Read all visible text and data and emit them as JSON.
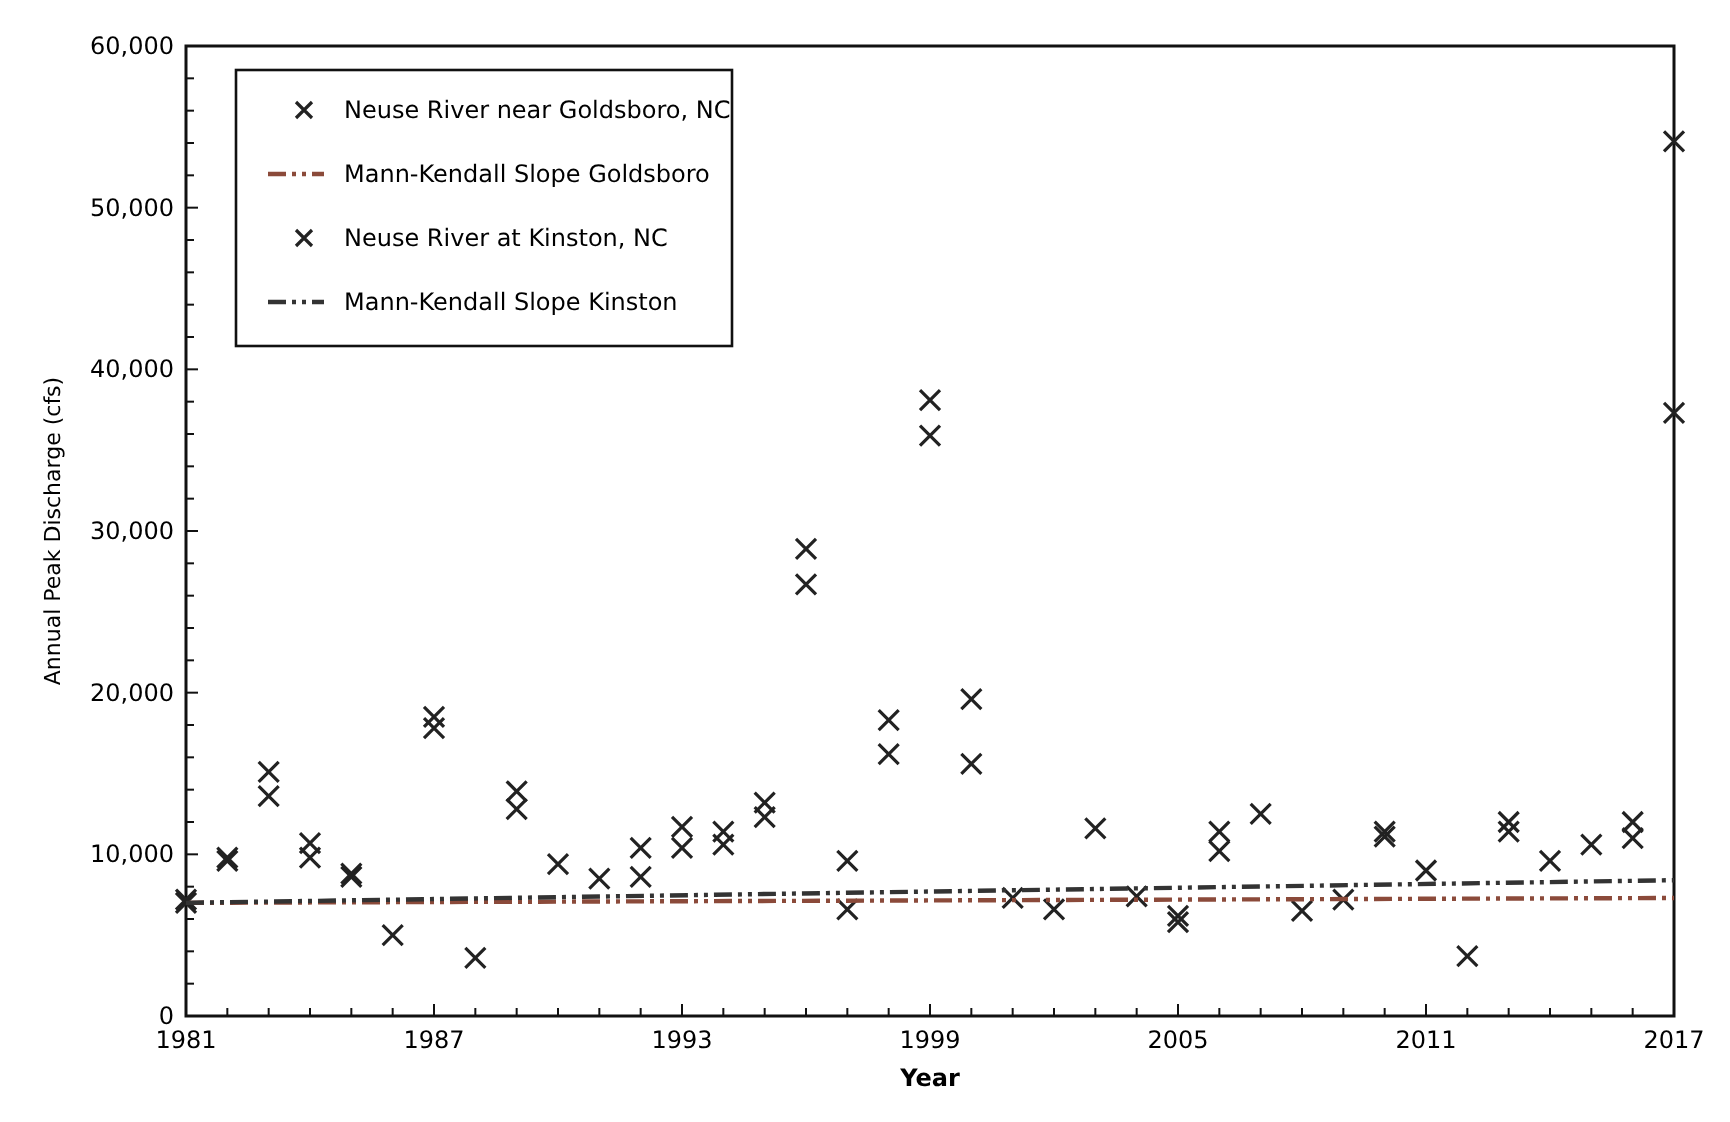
{
  "chart_data": {
    "type": "scatter",
    "xlabel": "Year",
    "ylabel": "Annual Peak Discharge (cfs)",
    "xlim": [
      1981,
      2017
    ],
    "ylim": [
      0,
      60000
    ],
    "xticks": [
      1981,
      {
        "value": 1982,
        "label": null
      },
      {
        "value": 1983,
        "label": null
      },
      {
        "value": 1984,
        "label": null
      },
      {
        "value": 1985,
        "label": null
      },
      {
        "value": 1986,
        "label": null
      },
      1987,
      {
        "value": 1988,
        "label": null
      },
      {
        "value": 1989,
        "label": null
      },
      {
        "value": 1990,
        "label": null
      },
      {
        "value": 1991,
        "label": null
      },
      {
        "value": 1992,
        "label": null
      },
      1993,
      {
        "value": 1994,
        "label": null
      },
      {
        "value": 1995,
        "label": null
      },
      {
        "value": 1996,
        "label": null
      },
      {
        "value": 1997,
        "label": null
      },
      {
        "value": 1998,
        "label": null
      },
      1999,
      {
        "value": 2000,
        "label": null
      },
      {
        "value": 2001,
        "label": null
      },
      {
        "value": 2002,
        "label": null
      },
      {
        "value": 2003,
        "label": null
      },
      {
        "value": 2004,
        "label": null
      },
      2005,
      {
        "value": 2006,
        "label": null
      },
      {
        "value": 2007,
        "label": null
      },
      {
        "value": 2008,
        "label": null
      },
      {
        "value": 2009,
        "label": null
      },
      {
        "value": 2010,
        "label": null
      },
      2011,
      {
        "value": 2012,
        "label": null
      },
      {
        "value": 2013,
        "label": null
      },
      {
        "value": 2014,
        "label": null
      },
      {
        "value": 2015,
        "label": null
      },
      {
        "value": 2016,
        "label": null
      },
      2017
    ],
    "yticks": [
      0,
      {
        "value": 2000,
        "label": null
      },
      {
        "value": 4000,
        "label": null
      },
      {
        "value": 6000,
        "label": null
      },
      {
        "value": 8000,
        "label": null
      },
      {
        "value": 10000,
        "label": "10,000"
      },
      {
        "value": 12000,
        "label": null
      },
      {
        "value": 14000,
        "label": null
      },
      {
        "value": 16000,
        "label": null
      },
      {
        "value": 18000,
        "label": null
      },
      {
        "value": 20000,
        "label": "20,000"
      },
      {
        "value": 22000,
        "label": null
      },
      {
        "value": 24000,
        "label": null
      },
      {
        "value": 26000,
        "label": null
      },
      {
        "value": 28000,
        "label": null
      },
      {
        "value": 30000,
        "label": "30,000"
      },
      {
        "value": 32000,
        "label": null
      },
      {
        "value": 34000,
        "label": null
      },
      {
        "value": 36000,
        "label": null
      },
      {
        "value": 38000,
        "label": null
      },
      {
        "value": 40000,
        "label": "40,000"
      },
      {
        "value": 42000,
        "label": null
      },
      {
        "value": 44000,
        "label": null
      },
      {
        "value": 46000,
        "label": null
      },
      {
        "value": 48000,
        "label": null
      },
      {
        "value": 50000,
        "label": "50,000"
      },
      {
        "value": 52000,
        "label": null
      },
      {
        "value": 54000,
        "label": null
      },
      {
        "value": 56000,
        "label": null
      },
      {
        "value": 58000,
        "label": null
      },
      {
        "value": 60000,
        "label": "60,000"
      }
    ],
    "grid": false,
    "legend": "top left",
    "x": [
      1981,
      1982,
      1983,
      1984,
      1985,
      1986,
      1987,
      1988,
      1989,
      1990,
      1991,
      1992,
      1993,
      1994,
      1995,
      1996,
      1997,
      1998,
      1999,
      2000,
      2001,
      2002,
      2003,
      2004,
      2005,
      2006,
      2007,
      2008,
      2009,
      2010,
      2011,
      2012,
      2013,
      2014,
      2015,
      2016,
      2017
    ],
    "series": [
      {
        "name": "Neuse River near Goldsboro, NC",
        "color": "#222222",
        "marker": "cross",
        "values": [
          7000,
          9600,
          13600,
          9800,
          8600,
          5000,
          17800,
          3600,
          12800,
          9400,
          8500,
          8600,
          10400,
          10600,
          12300,
          26700,
          6600,
          16200,
          35900,
          15600,
          7300,
          6600,
          11600,
          7400,
          5800,
          10200,
          12500,
          6500,
          7200,
          11100,
          9000,
          3700,
          11400,
          9600,
          10600,
          11000,
          37300
        ]
      },
      {
        "name": "Mann-Kendall Slope Goldsboro",
        "type": "line",
        "color": "#8b4a3a",
        "line_style": "dashed",
        "x": [
          1981,
          1999,
          2017
        ],
        "values": [
          7000,
          7150,
          7300
        ]
      },
      {
        "name": "Neuse River at Kinston, NC",
        "color": "#222222",
        "marker": "cross",
        "values": [
          7200,
          9800,
          15100,
          10700,
          8800,
          null,
          18500,
          null,
          13900,
          null,
          null,
          10400,
          11700,
          11400,
          13200,
          28900,
          9600,
          18300,
          38100,
          19600,
          null,
          null,
          null,
          null,
          6200,
          11400,
          null,
          null,
          null,
          11400,
          null,
          null,
          12000,
          null,
          null,
          12000,
          54100
        ]
      },
      {
        "name": "Mann-Kendall Slope Kinston",
        "type": "line",
        "color": "#333333",
        "line_style": "dashed",
        "x": [
          1981,
          1999,
          2017
        ],
        "values": [
          7000,
          7700,
          8400
        ]
      }
    ]
  }
}
